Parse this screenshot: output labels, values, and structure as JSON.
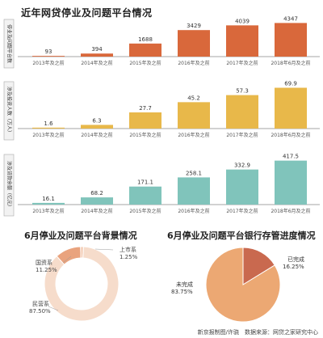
{
  "header": {
    "title": "近年网贷停业及问题平台情况"
  },
  "colors": {
    "orange": "#d9683b",
    "yellow": "#e8b84a",
    "teal": "#80c4bb",
    "donut_main": "#f6dccb",
    "donut_small": "#e9a37e",
    "pie_main": "#eca873",
    "pie_small": "#c9694f"
  },
  "chart_data": [
    {
      "type": "bar",
      "title": "",
      "ylabel": "停业及问题平台数",
      "categories": [
        "2013年及之前",
        "2014年及之前",
        "2015年及之前",
        "2016年及之前",
        "2017年及之前",
        "2018年6月及之前"
      ],
      "values": [
        93,
        394,
        1688,
        3429,
        4039,
        4347
      ],
      "labels": [
        "93",
        "394",
        "1688",
        "3429",
        "4039",
        "4347"
      ],
      "ylim": [
        0,
        4600
      ],
      "color": "#d9683b"
    },
    {
      "type": "bar",
      "title": "",
      "ylabel": "涉及投资人数（万人）",
      "categories": [
        "2013年及之前",
        "2014年及之前",
        "2015年及之前",
        "2016年及之前",
        "2017年及之前",
        "2018年6月及之前"
      ],
      "values": [
        1.6,
        6.3,
        27.7,
        45.2,
        57.3,
        69.9
      ],
      "labels": [
        "1.6",
        "6.3",
        "27.7",
        "45.2",
        "57.3",
        "69.9"
      ],
      "ylim": [
        0,
        72
      ],
      "color": "#e8b84a"
    },
    {
      "type": "bar",
      "title": "",
      "ylabel": "涉及贷款余额（亿元）",
      "categories": [
        "2013年及之前",
        "2014年及之前",
        "2015年及之前",
        "2016年及之前",
        "2017年及之前",
        "2018年6月及之前"
      ],
      "values": [
        16.1,
        68.2,
        171.1,
        258.1,
        332.9,
        417.5
      ],
      "labels": [
        "16.1",
        "68.2",
        "171.1",
        "258.1",
        "332.9",
        "417.5"
      ],
      "ylim": [
        0,
        430
      ],
      "color": "#80c4bb"
    },
    {
      "type": "pie",
      "title": "6月停业及问题平台背景情况",
      "slices": [
        {
          "name": "民营系",
          "value": 87.5,
          "label": "87.50%"
        },
        {
          "name": "国资系",
          "value": 11.25,
          "label": "11.25%"
        },
        {
          "name": "上市系",
          "value": 1.25,
          "label": "1.25%"
        }
      ]
    },
    {
      "type": "pie",
      "title": "6月停业及问题平台银行存管进度情况",
      "slices": [
        {
          "name": "未完成",
          "value": 83.75,
          "label": "83.75%"
        },
        {
          "name": "已完成",
          "value": 16.25,
          "label": "16.25%"
        }
      ]
    }
  ],
  "source": "新京报制图/许骁　数据来源：网贷之家研究中心"
}
